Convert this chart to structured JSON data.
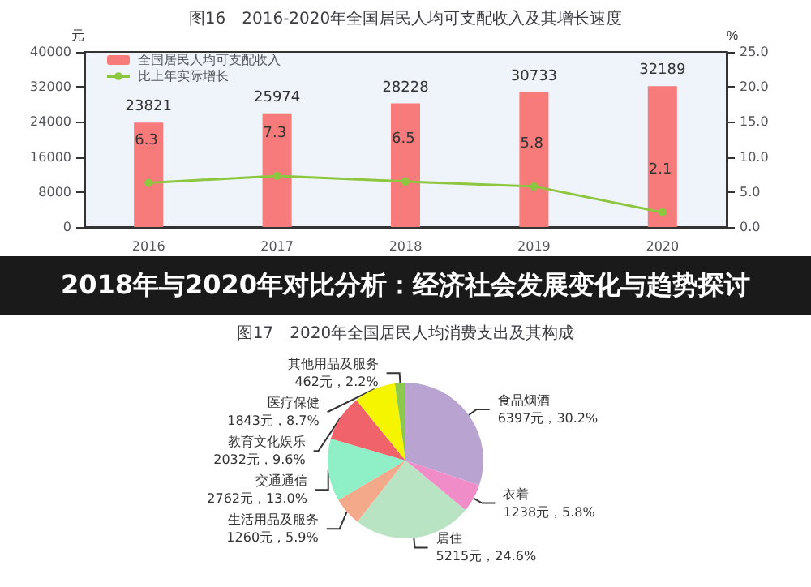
{
  "chart_data": [
    {
      "type": "bar",
      "title": "图16　2016-2020年全国居民人均可支配收入及其增长速度",
      "ylabel": "元",
      "y2label": "%",
      "categories": [
        "2016",
        "2017",
        "2018",
        "2019",
        "2020"
      ],
      "series": [
        {
          "name": "全国居民人均可支配收入",
          "type": "bar",
          "color": "#f77b7b",
          "values": [
            23821,
            25974,
            28228,
            30733,
            32189
          ]
        },
        {
          "name": "比上年实际增长",
          "type": "line",
          "axis": "y2",
          "color": "#8dc63f",
          "values": [
            6.3,
            7.3,
            6.5,
            5.8,
            2.1
          ]
        }
      ],
      "ylim": [
        0,
        40000
      ],
      "yticks": [
        0,
        8000,
        16000,
        24000,
        32000,
        40000
      ],
      "y2lim": [
        0,
        25
      ],
      "y2ticks": [
        {
          "value": 0,
          "label": "0.0"
        },
        {
          "value": 5,
          "label": "5.0"
        },
        {
          "value": 10,
          "label": "10.0"
        },
        {
          "value": 15,
          "label": "15.0"
        },
        {
          "value": 20,
          "label": "20.0"
        },
        {
          "value": 25,
          "label": "25.0"
        }
      ],
      "data_labels": true,
      "legend": "top left",
      "marker": "circle",
      "grid": false
    },
    {
      "type": "other",
      "title": "2018年与2020年对比分析：经济社会发展变化与趋势探讨"
    },
    {
      "type": "pie",
      "title": "图17　2020年全国居民人均消费支出及其构成",
      "categories": [
        "食品烟酒",
        "衣着",
        "居住",
        "生活用品及服务",
        "交通通信",
        "教育文化娱乐",
        "医疗保健",
        "其他用品及服务"
      ],
      "values": [
        6397,
        1238,
        5215,
        1260,
        2762,
        2032,
        1843,
        462
      ],
      "value_labels": [
        "6397元，30.2%",
        "1238元，5.8%",
        "5215元，24.6%",
        "1260元，5.9%",
        "2762元，13.0%",
        "2032元，9.6%",
        "1843元，8.7%",
        "462元，2.2%"
      ],
      "colors": [
        "#b9a3d1",
        "#f08dc8",
        "#b8e4c3",
        "#f4a98a",
        "#8ff0c8",
        "#f0636a",
        "#f5f500",
        "#8cc84b"
      ],
      "legend": false
    }
  ]
}
